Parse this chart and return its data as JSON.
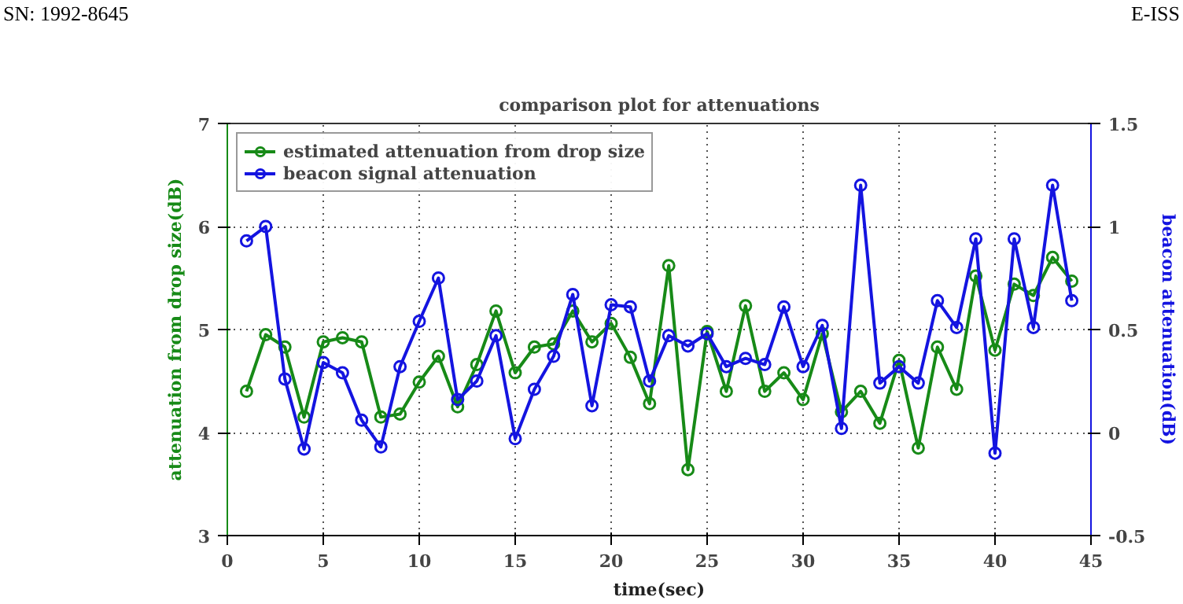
{
  "chart_data": {
    "type": "line",
    "title": "comparison plot for attenuations",
    "xlabel": "time(sec)",
    "ylabel": "attenuation from drop size(dB)",
    "y2label": "beacon attenuation(dB)",
    "annotations": [
      "SN: 1992-8645",
      "E-ISS"
    ],
    "x": [
      1,
      2,
      3,
      4,
      5,
      6,
      7,
      8,
      9,
      10,
      11,
      12,
      13,
      14,
      15,
      16,
      17,
      18,
      19,
      20,
      21,
      22,
      23,
      24,
      25,
      26,
      27,
      28,
      29,
      30,
      31,
      32,
      33,
      34,
      35,
      36,
      37,
      38,
      39,
      40,
      41,
      42,
      43,
      44
    ],
    "series": [
      {
        "name": "estimated attenuation from drop size",
        "color": "#178a17",
        "values": [
          4.4,
          4.95,
          4.83,
          4.15,
          4.88,
          4.92,
          4.88,
          4.15,
          4.18,
          4.49,
          4.74,
          4.25,
          4.66,
          5.18,
          4.58,
          4.83,
          4.86,
          5.18,
          4.88,
          5.06,
          4.73,
          4.28,
          5.62,
          3.64,
          4.98,
          4.4,
          5.23,
          4.4,
          4.58,
          4.32,
          4.96,
          4.2,
          4.4,
          4.09,
          4.7,
          3.85,
          4.83,
          4.42,
          5.52,
          4.8,
          5.44,
          5.33,
          5.7,
          5.47
        ]
      },
      {
        "name": "beacon signal attenuation",
        "color": "#1414e0",
        "axis": "y2",
        "values": [
          0.93,
          1.0,
          0.26,
          -0.08,
          0.34,
          0.29,
          0.06,
          -0.07,
          0.32,
          0.54,
          0.75,
          0.16,
          0.25,
          0.47,
          -0.03,
          0.21,
          0.37,
          0.67,
          0.13,
          0.62,
          0.61,
          0.25,
          0.47,
          0.42,
          0.48,
          0.32,
          0.36,
          0.33,
          0.61,
          0.32,
          0.52,
          0.02,
          1.2,
          0.24,
          0.32,
          0.24,
          0.64,
          0.51,
          0.94,
          -0.1,
          0.94,
          0.51,
          1.2,
          0.64
        ]
      }
    ],
    "xlim": [
      0,
      45
    ],
    "xticks": [
      0,
      5,
      10,
      15,
      20,
      25,
      30,
      35,
      40,
      45
    ],
    "ylim": [
      3,
      7
    ],
    "yticks": [
      3,
      4,
      5,
      6,
      7
    ],
    "y2lim": [
      -0.5,
      1.5
    ],
    "y2ticks": [
      -0.5,
      0,
      0.5,
      1,
      1.5
    ],
    "grid": true,
    "legend": "top left",
    "marker": "circle",
    "line_style": "solid"
  }
}
